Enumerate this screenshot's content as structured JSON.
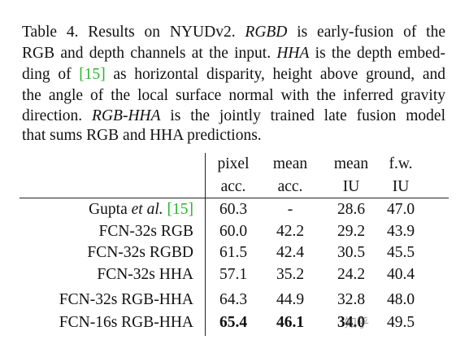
{
  "caption": {
    "lines": [
      [
        "Table 4.   Results on NYUDv2. ",
        "RGBD",
        " is early-fusion of the"
      ],
      [
        "RGB and depth channels at the input. ",
        "HHA",
        " is the depth embed-"
      ],
      [
        "ding of ",
        "[15]",
        " as horizontal disparity, height above ground, and"
      ],
      [
        "the angle of the local surface normal with the inferred gravity"
      ],
      [
        "direction. ",
        "RGB-HHA",
        " is the jointly trained late fusion model"
      ],
      [
        "that sums RGB and HHA predictions."
      ]
    ]
  },
  "table": {
    "header": [
      [
        "pixel",
        "acc."
      ],
      [
        "mean",
        "acc."
      ],
      [
        "mean",
        "IU"
      ],
      [
        "f.w.",
        "IU"
      ]
    ],
    "rows": [
      {
        "label": [
          "Gupta ",
          "et al.",
          " ",
          "[15]"
        ],
        "cells": [
          "60.3",
          "-",
          "28.6",
          "47.0"
        ]
      },
      {
        "label": [
          "FCN-32s RGB"
        ],
        "cells": [
          "60.0",
          "42.2",
          "29.2",
          "43.9"
        ]
      },
      {
        "label": [
          "FCN-32s RGBD"
        ],
        "cells": [
          "61.5",
          "42.4",
          "30.5",
          "45.5"
        ]
      },
      {
        "label": [
          "FCN-32s HHA"
        ],
        "cells": [
          "57.1",
          "35.2",
          "24.2",
          "40.4"
        ]
      },
      {
        "label": [
          "FCN-32s RGB-HHA"
        ],
        "cells": [
          "64.3",
          "44.9",
          "32.8",
          "48.0"
        ]
      },
      {
        "label": [
          "FCN-16s RGB-HHA"
        ],
        "cells": [
          "65.4",
          "46.1",
          "34.0",
          "49.5"
        ]
      }
    ]
  },
  "watermark": "知乎"
}
